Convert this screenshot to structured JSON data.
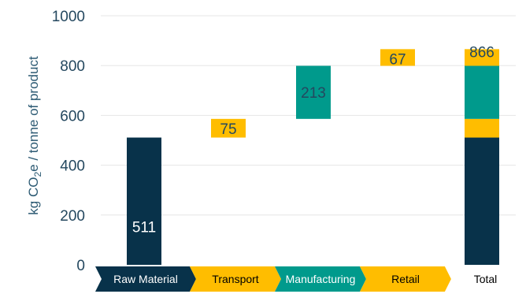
{
  "chart_data": {
    "type": "bar",
    "subtype": "waterfall",
    "categories": [
      "Raw Material",
      "Transport",
      "Manufacturing",
      "Retail",
      "Total"
    ],
    "values": [
      511,
      75,
      213,
      67,
      866
    ],
    "data_labels": [
      "511",
      "75",
      "213",
      "67",
      "866"
    ],
    "total_composition": [
      {
        "category": "Raw Material",
        "value": 511
      },
      {
        "category": "Transport",
        "value": 75
      },
      {
        "category": "Manufacturing",
        "value": 213
      },
      {
        "category": "Retail",
        "value": 67
      }
    ],
    "ylabel": {
      "prefix": "kg CO",
      "subscript": "2",
      "suffix": "e / tonne of product"
    },
    "ylim": [
      0,
      1000
    ],
    "yticks": [
      0,
      200,
      400,
      600,
      800,
      1000
    ],
    "grid": true,
    "colors": {
      "Raw Material": "#08324a",
      "Transport": "#ffbd00",
      "Manufacturing": "#009a8c",
      "Retail": "#ffbd00",
      "Total": "#ffbd00",
      "grid": "#e6e6e6",
      "axis_text": "#24485f"
    },
    "category_chevron_colors": [
      "#08324a",
      "#ffbd00",
      "#009a8c",
      "#ffbd00",
      "#ffffff"
    ],
    "category_text_colors": [
      "#ffffff",
      "#000000",
      "#ffffff",
      "#000000",
      "#000000"
    ],
    "label_colors": [
      "#ffffff",
      "#24485f",
      "#24485f",
      "#24485f",
      "#24485f"
    ]
  }
}
